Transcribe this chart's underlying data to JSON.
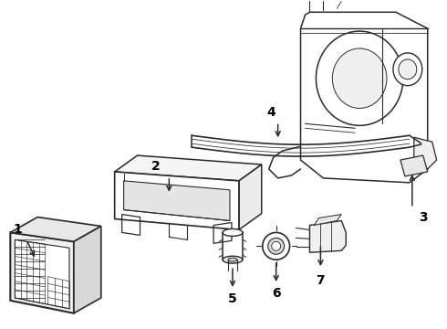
{
  "bg_color": "#ffffff",
  "line_color": "#2a2a2a",
  "label_color": "#000000",
  "lw_main": 1.1,
  "lw_detail": 0.7,
  "label_fontsize": 10
}
